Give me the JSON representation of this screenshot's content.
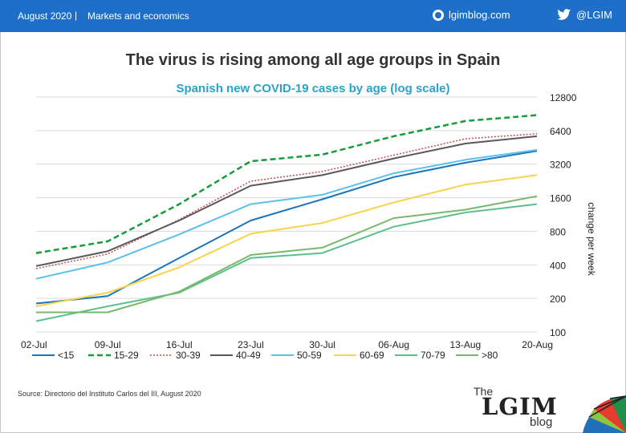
{
  "header": {
    "date": "August 2020",
    "separator": "|",
    "section": "Markets and economics",
    "site": "lgimblog.com",
    "social": "@LGIM",
    "site_icon": "globe-icon",
    "social_icon": "twitter-bird-icon"
  },
  "chart_data": {
    "type": "line",
    "title": "The virus is rising among all age groups in Spain",
    "subtitle": "Spanish new COVID-19 cases by age (log scale)",
    "ylabel": "change per week",
    "yscale": "log",
    "ylim": [
      100,
      12800
    ],
    "yticks": [
      "100",
      "200",
      "400",
      "800",
      "1600",
      "3200",
      "6400",
      "12800"
    ],
    "categories": [
      "02-Jul",
      "09-Jul",
      "16-Jul",
      "23-Jul",
      "30-Jul",
      "06-Aug",
      "13-Aug",
      "20-Aug"
    ],
    "grid": true,
    "legend_position": "bottom",
    "series": [
      {
        "name": "<15",
        "color": "#1b75bc",
        "dash": "solid",
        "values": [
          180,
          210,
          460,
          1000,
          1550,
          2450,
          3300,
          4200
        ]
      },
      {
        "name": "15-29",
        "color": "#169c3a",
        "dash": "dashed",
        "values": [
          510,
          650,
          1400,
          3400,
          3900,
          5700,
          7800,
          8800
        ]
      },
      {
        "name": "30-39",
        "color": "#c0504d",
        "dash": "dotted",
        "values": [
          370,
          500,
          1020,
          2250,
          2750,
          3850,
          5400,
          6000
        ]
      },
      {
        "name": "40-49",
        "color": "#595959",
        "dash": "solid",
        "values": [
          390,
          530,
          1000,
          2050,
          2550,
          3600,
          4900,
          5700
        ]
      },
      {
        "name": "50-59",
        "color": "#5bc0eb",
        "dash": "solid",
        "values": [
          300,
          420,
          750,
          1400,
          1700,
          2650,
          3500,
          4300
        ]
      },
      {
        "name": "60-69",
        "color": "#f7d44c",
        "dash": "solid",
        "values": [
          170,
          225,
          380,
          760,
          950,
          1450,
          2100,
          2550
        ]
      },
      {
        "name": "70-79",
        "color": "#5cbf8f",
        "dash": "solid",
        "values": [
          125,
          170,
          225,
          460,
          510,
          880,
          1180,
          1400
        ]
      },
      {
        "name": ">80",
        "color": "#78b86a",
        "dash": "solid",
        "values": [
          150,
          150,
          230,
          490,
          570,
          1050,
          1250,
          1650
        ]
      }
    ]
  },
  "footer": {
    "source": "Source: Directorio del Instituto Carlos del III, August 2020",
    "logo_the": "The",
    "logo_name": "LGIM",
    "logo_blog": "blog"
  }
}
